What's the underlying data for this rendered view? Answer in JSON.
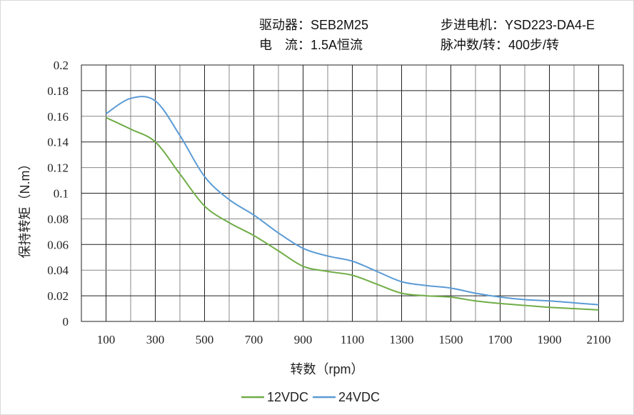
{
  "header": {
    "driver": "驱动器：SEB2M25",
    "motor": "步进电机：YSD223-DA4-E",
    "current": "电　流：1.5A恒流",
    "pulses": "脉冲数/转：400步/转"
  },
  "chart_data": {
    "type": "line",
    "xlabel": "转数（rpm）",
    "ylabel": "保持转矩（N.m）",
    "xlim": [
      0,
      2200
    ],
    "ylim": [
      0,
      0.2
    ],
    "x_ticks": [
      "100",
      "300",
      "500",
      "700",
      "900",
      "1100",
      "1300",
      "1500",
      "1700",
      "1900",
      "2100"
    ],
    "y_ticks": [
      "0",
      "0.02",
      "0.04",
      "0.06",
      "0.08",
      "0.1",
      "0.12",
      "0.14",
      "0.16",
      "0.18",
      "0.2"
    ],
    "grid": true,
    "legend_position": "bottom",
    "x": [
      100,
      200,
      300,
      400,
      500,
      600,
      700,
      800,
      900,
      1000,
      1100,
      1200,
      1300,
      1400,
      1500,
      1600,
      1700,
      1800,
      1900,
      2000,
      2100
    ],
    "series": [
      {
        "name": "12VDC",
        "color": "#70ad47",
        "values": [
          0.159,
          0.15,
          0.14,
          0.115,
          0.09,
          0.077,
          0.067,
          0.055,
          0.043,
          0.039,
          0.036,
          0.029,
          0.022,
          0.02,
          0.019,
          0.016,
          0.014,
          0.0125,
          0.011,
          0.01,
          0.009
        ]
      },
      {
        "name": "24VDC",
        "color": "#5b9bd5",
        "values": [
          0.162,
          0.174,
          0.172,
          0.145,
          0.113,
          0.095,
          0.083,
          0.069,
          0.057,
          0.051,
          0.047,
          0.039,
          0.031,
          0.028,
          0.026,
          0.022,
          0.019,
          0.017,
          0.016,
          0.0145,
          0.013
        ]
      }
    ]
  }
}
